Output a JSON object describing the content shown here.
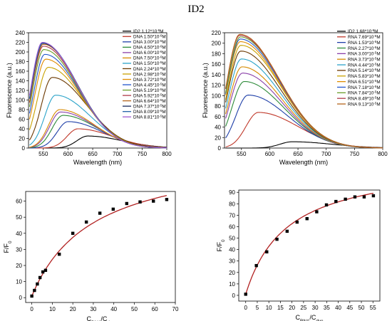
{
  "figure_title": "ID2",
  "chart_data": [
    {
      "id": "dna-spectra",
      "type": "line",
      "xlabel": "Wavelength (nm)",
      "ylabel": "Fluorescence (a.u.)",
      "xlim": [
        520,
        800
      ],
      "ylim": [
        0,
        240
      ],
      "xticks": [
        550,
        600,
        650,
        700,
        750,
        800
      ],
      "yticks": [
        0,
        20,
        40,
        60,
        80,
        100,
        120,
        140,
        160,
        180,
        200,
        220,
        240
      ],
      "legend_position": "right",
      "curve_peak_x": 550,
      "x_scale": "linear",
      "series": [
        {
          "name": "ID2  1.12*10^-6M",
          "peak": 25,
          "peak_x": 640,
          "color": "#000000"
        },
        {
          "name": "DNA 1.50*10^-6M",
          "peak": 40,
          "peak_x": 620,
          "color": "#c0392b"
        },
        {
          "name": "DNA 3.00*10^-6M",
          "peak": 55,
          "peak_x": 600,
          "color": "#1f3fa8"
        },
        {
          "name": "DNA 4.50*10^-6M",
          "peak": 68,
          "peak_x": 590,
          "color": "#2e8b3a"
        },
        {
          "name": "DNA 6.00*10^-6M",
          "peak": 75,
          "peak_x": 585,
          "color": "#8a3fa8"
        },
        {
          "name": "DNA 7.50*10^-6M",
          "peak": 80,
          "peak_x": 583,
          "color": "#d68a00"
        },
        {
          "name": "DNA 1.50*10^-5M",
          "peak": 110,
          "peak_x": 575,
          "color": "#2aa3c9"
        },
        {
          "name": "DNA 2.24*10^-5M",
          "peak": 147,
          "peak_x": 568,
          "color": "#6b3800"
        },
        {
          "name": "DNA 2.98*10^-5M",
          "peak": 168,
          "peak_x": 560,
          "color": "#c8a100"
        },
        {
          "name": "DNA 3.72*10^-5M",
          "peak": 185,
          "peak_x": 555,
          "color": "#e08c00"
        },
        {
          "name": "DNA 4.45*10^-5M",
          "peak": 195,
          "peak_x": 553,
          "color": "#2255cc"
        },
        {
          "name": "DNA 5.19*10^-5M",
          "peak": 205,
          "peak_x": 551,
          "color": "#6a9e2a"
        },
        {
          "name": "DNA 5.92*10^-5M",
          "peak": 212,
          "peak_x": 550,
          "color": "#b03b4a"
        },
        {
          "name": "DNA 6.64*10^-5M",
          "peak": 216,
          "peak_x": 550,
          "color": "#b5651d"
        },
        {
          "name": "DNA 7.37*10^-5M",
          "peak": 218,
          "peak_x": 549,
          "color": "#1a2a5e"
        },
        {
          "name": "DNA 8.09*10^-5M",
          "peak": 219,
          "peak_x": 549,
          "color": "#1f5fa8"
        },
        {
          "name": "DNA 8.81*10^-5M",
          "peak": 220,
          "peak_x": 548,
          "color": "#a05ad0"
        }
      ]
    },
    {
      "id": "rna-spectra",
      "type": "line",
      "xlabel": "Wavelength (nm)",
      "ylabel": "Fluorescence (a.u.)",
      "xlim": [
        520,
        800
      ],
      "ylim": [
        0,
        220
      ],
      "xticks": [
        550,
        600,
        650,
        700,
        750,
        800
      ],
      "yticks": [
        0,
        20,
        40,
        60,
        80,
        100,
        120,
        140,
        160,
        180,
        200,
        220
      ],
      "legend_position": "right",
      "series": [
        {
          "name": "ID2  1.68*10^-6M",
          "peak": 12,
          "peak_x": 640,
          "color": "#000000"
        },
        {
          "name": "RNA 7.69*10^-6M",
          "peak": 68,
          "peak_x": 580,
          "color": "#c0392b"
        },
        {
          "name": "RNA 1.53*10^-5M",
          "peak": 101,
          "peak_x": 562,
          "color": "#1f3fa8"
        },
        {
          "name": "RNA 2.27*10^-5M",
          "peak": 127,
          "peak_x": 555,
          "color": "#2e8b3a"
        },
        {
          "name": "RNA 3.00*10^-5M",
          "peak": 143,
          "peak_x": 552,
          "color": "#8a3fa8"
        },
        {
          "name": "RNA 3.73*10^-5M",
          "peak": 155,
          "peak_x": 551,
          "color": "#d68a00"
        },
        {
          "name": "RNA 4.44*10^-5M",
          "peak": 170,
          "peak_x": 550,
          "color": "#2aa3c9"
        },
        {
          "name": "RNA 5.14*10^-5M",
          "peak": 185,
          "peak_x": 549,
          "color": "#6b3800"
        },
        {
          "name": "RNA 5.83*10^-5M",
          "peak": 196,
          "peak_x": 549,
          "color": "#c8a100"
        },
        {
          "name": "RNA 6.51*10^-5M",
          "peak": 203,
          "peak_x": 548,
          "color": "#e08c00"
        },
        {
          "name": "RNA 7.18*10^-5M",
          "peak": 208,
          "peak_x": 548,
          "color": "#2255cc"
        },
        {
          "name": "RNA 7.84*10^-5M",
          "peak": 212,
          "peak_x": 548,
          "color": "#6a9e2a"
        },
        {
          "name": "RNA 8.49*10^-5M",
          "peak": 215,
          "peak_x": 547,
          "color": "#b03b4a"
        },
        {
          "name": "RNA 9.13*10^-5M",
          "peak": 217,
          "peak_x": 547,
          "color": "#b5651d"
        }
      ]
    },
    {
      "id": "dna-titration",
      "type": "scatter",
      "xlabel": "C_DNA/C_dye",
      "ylabel": "F/F_0",
      "xlim": [
        -3,
        70
      ],
      "ylim": [
        -3,
        66
      ],
      "xticks": [
        0,
        10,
        20,
        30,
        40,
        50,
        60,
        70
      ],
      "yticks": [
        0,
        10,
        20,
        30,
        40,
        50,
        60
      ],
      "x": [
        0,
        1.3,
        2.7,
        4.0,
        5.4,
        6.7,
        13.4,
        20.0,
        26.6,
        33.2,
        39.7,
        46.3,
        52.8,
        59.3,
        65.8
      ],
      "y": [
        1,
        4.5,
        8.5,
        12.5,
        16.0,
        17.0,
        27.0,
        40.0,
        47.0,
        52.5,
        55.0,
        58.5,
        59.5,
        60.0,
        61.0
      ],
      "fit": {
        "ymax": 91,
        "k": 30
      },
      "marker_color": "#000000",
      "fit_color": "#b22222"
    },
    {
      "id": "rna-titration",
      "type": "scatter",
      "xlabel": "C_RNA/C_dye",
      "ylabel": "F/F_0",
      "xlim": [
        -3,
        58
      ],
      "ylim": [
        -5,
        92
      ],
      "xticks": [
        0,
        5,
        10,
        15,
        20,
        25,
        30,
        35,
        40,
        45,
        50,
        55
      ],
      "yticks": [
        0,
        10,
        20,
        30,
        40,
        50,
        60,
        70,
        80,
        90
      ],
      "x": [
        0,
        4.6,
        9.1,
        13.5,
        17.9,
        22.2,
        26.5,
        30.7,
        34.9,
        39.0,
        43.1,
        47.2,
        51.2,
        55.2
      ],
      "y": [
        1,
        26,
        38,
        49,
        56,
        64,
        67,
        73,
        79,
        82,
        84,
        86,
        86,
        87
      ],
      "fit": {
        "ymax": 117,
        "k": 18
      },
      "marker_color": "#000000",
      "fit_color": "#b22222"
    }
  ]
}
